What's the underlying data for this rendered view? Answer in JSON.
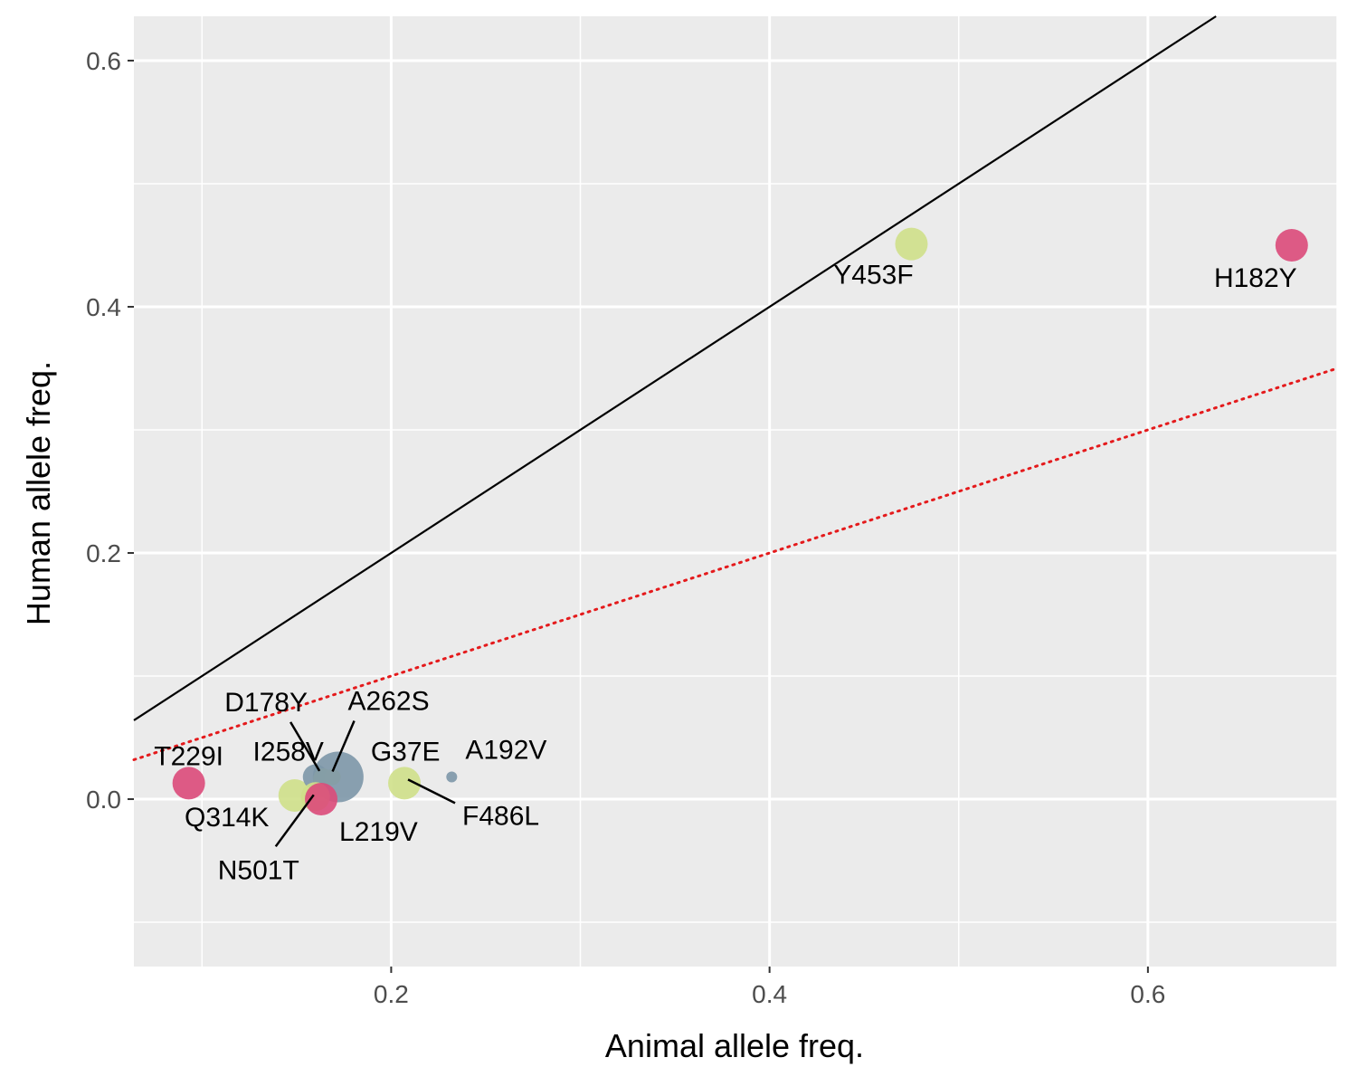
{
  "chart_data": {
    "type": "scatter",
    "xlabel": "Animal allele freq.",
    "ylabel": "Human allele freq.",
    "xlim": [
      0.064,
      0.7
    ],
    "ylim": [
      -0.136,
      0.636
    ],
    "x_ticks": [
      0.2,
      0.4,
      0.6
    ],
    "y_ticks": [
      0.0,
      0.2,
      0.4,
      0.6
    ],
    "x_tick_labels": [
      "0.2",
      "0.4",
      "0.6"
    ],
    "y_tick_labels": [
      "0.0",
      "0.2",
      "0.4",
      "0.6"
    ],
    "grid": true,
    "background_color": "#ebebeb",
    "reference_lines": [
      {
        "style": "solid",
        "color": "#000000",
        "slope": 1.0,
        "intercept": 0.0
      },
      {
        "style": "dotted",
        "color": "#e41a1c",
        "slope": 0.5,
        "intercept": 0.0
      }
    ],
    "points": [
      {
        "label": "H182Y",
        "x": 0.676,
        "y": 0.45,
        "color": "#dc4a7a",
        "size": 18
      },
      {
        "label": "Y453F",
        "x": 0.475,
        "y": 0.451,
        "color": "#cfe08a",
        "size": 18
      },
      {
        "label": "T229I",
        "x": 0.093,
        "y": 0.013,
        "color": "#dc4a7a",
        "size": 18
      },
      {
        "label": "Q314K",
        "x": 0.149,
        "y": 0.003,
        "color": "#cfe08a",
        "size": 18
      },
      {
        "label": "I258V",
        "x": 0.16,
        "y": 0.018,
        "color": "#7d97a8",
        "size": 14
      },
      {
        "label": "D178Y",
        "x": 0.164,
        "y": 0.017,
        "color": "#cfe08a",
        "size": 11
      },
      {
        "label": "A262S",
        "x": 0.169,
        "y": 0.018,
        "color": "#cfe08a",
        "size": 9
      },
      {
        "label": "G37E",
        "x": 0.172,
        "y": 0.018,
        "color": "#7d97a8",
        "size": 28
      },
      {
        "label": "N501T",
        "x": 0.16,
        "y": 0.002,
        "color": "#cfe08a",
        "size": 16
      },
      {
        "label": "L219V",
        "x": 0.163,
        "y": 0.0,
        "color": "#dc4a7a",
        "size": 18
      },
      {
        "label": "F486L",
        "x": 0.207,
        "y": 0.013,
        "color": "#cfe08a",
        "size": 18
      },
      {
        "label": "A192V",
        "x": 0.232,
        "y": 0.018,
        "color": "#7d97a8",
        "size": 6
      }
    ]
  }
}
